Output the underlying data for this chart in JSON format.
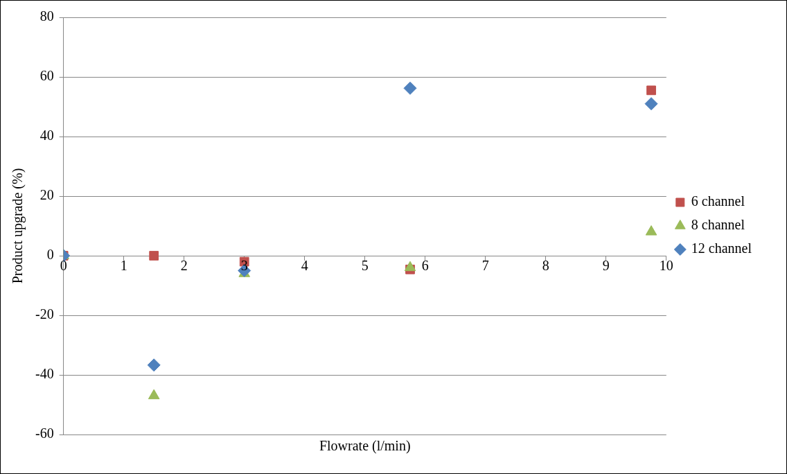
{
  "chart_data": {
    "type": "scatter",
    "xlabel": "Flowrate (l/min)",
    "ylabel": "Product upgrade (%)",
    "xlim": [
      0,
      10
    ],
    "xticks": [
      0,
      1,
      2,
      3,
      4,
      5,
      6,
      7,
      8,
      9,
      10
    ],
    "ylim": [
      -60,
      80
    ],
    "yticks": [
      -60,
      -40,
      -20,
      0,
      20,
      40,
      60,
      80
    ],
    "grid": "y",
    "legend": "right",
    "series": [
      {
        "name": "6 channel",
        "color": "#c0504d",
        "marker": "square",
        "x": [
          0,
          1.5,
          3,
          5.75,
          9.75
        ],
        "values": [
          0,
          0,
          -2,
          -4.6,
          55.5
        ]
      },
      {
        "name": "8 channel",
        "color": "#9bbb59",
        "marker": "triangle",
        "x": [
          0,
          1.5,
          3,
          5.75,
          9.75
        ],
        "values": [
          0,
          -47,
          -6,
          -4,
          8
        ]
      },
      {
        "name": "12 channel",
        "color": "#4f81bd",
        "marker": "diamond",
        "x": [
          0,
          1.5,
          3,
          5.75,
          9.75
        ],
        "values": [
          0,
          -36.7,
          -5,
          56.2,
          51
        ]
      }
    ]
  }
}
